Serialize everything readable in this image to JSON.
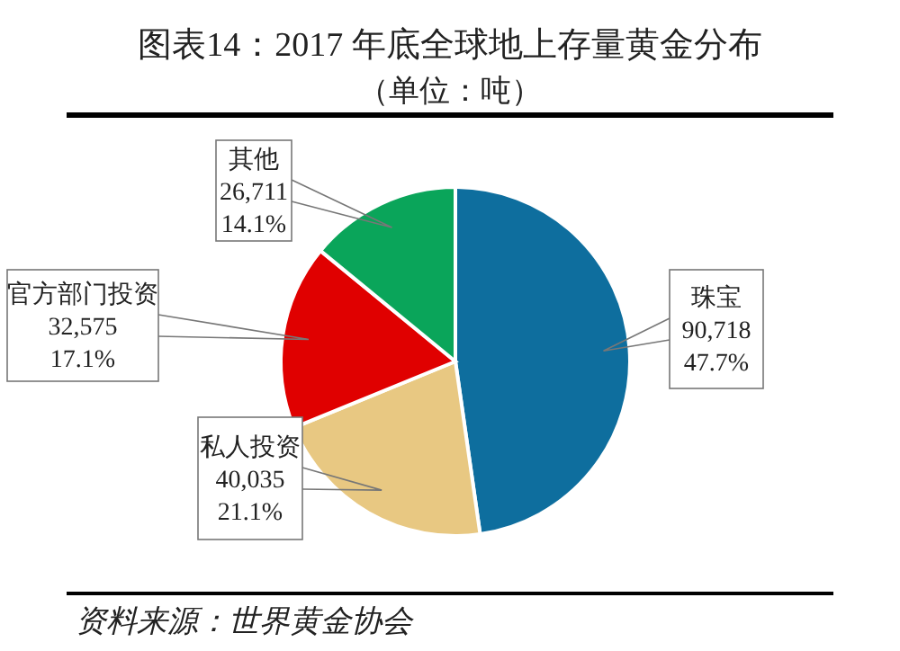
{
  "chart_data": {
    "type": "pie",
    "title": "图表14：2017 年底全球地上存量黄金分布",
    "subtitle": "（单位：吨）",
    "categories": [
      "珠宝",
      "私人投资",
      "官方部门投资",
      "其他"
    ],
    "values": [
      90718,
      40035,
      32575,
      26711
    ],
    "colors": [
      "#0e6e9e",
      "#e8c882",
      "#e00000",
      "#0aa55a"
    ],
    "value_labels": [
      "90,718",
      "40,035",
      "32,575",
      "26,711"
    ],
    "annotations": [
      {
        "text": "47.7%",
        "x": "珠宝"
      },
      {
        "text": "21.1%",
        "x": "私人投资"
      },
      {
        "text": "17.1%",
        "x": "官方部门投资"
      },
      {
        "text": "14.1%",
        "x": "其他"
      },
      "资料来源：世界黄金协会"
    ]
  }
}
